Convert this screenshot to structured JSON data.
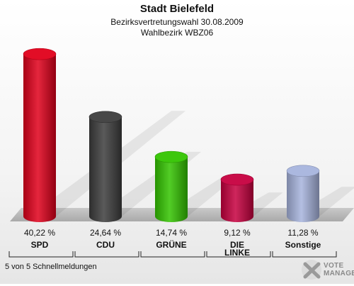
{
  "chart_data": {
    "type": "bar",
    "title": "Stadt Bielefeld",
    "subtitle": "Bezirksvertretungswahl 30.08.2009",
    "subtitle2": "Wahlbezirk WBZ06",
    "categories": [
      "SPD",
      "CDU",
      "GRÜNE",
      "DIE LINKE",
      "Sonstige"
    ],
    "values": [
      40.22,
      24.64,
      14.74,
      9.12,
      11.28
    ],
    "value_labels": [
      "40,22 %",
      "24,64 %",
      "14,74 %",
      "9,12 %",
      "11,28 %"
    ],
    "colors": [
      "#e0001b",
      "#3d3d3d",
      "#33c400",
      "#c6003f",
      "#a7b4dd"
    ],
    "ylim": [
      0,
      42
    ],
    "grid": false,
    "legend": "none"
  },
  "footnote": "5 von 5 Schnellmeldungen",
  "logo": {
    "line1": "VOTE",
    "line2": "MANAGER",
    "icon": "vote-manager-x-icon"
  }
}
